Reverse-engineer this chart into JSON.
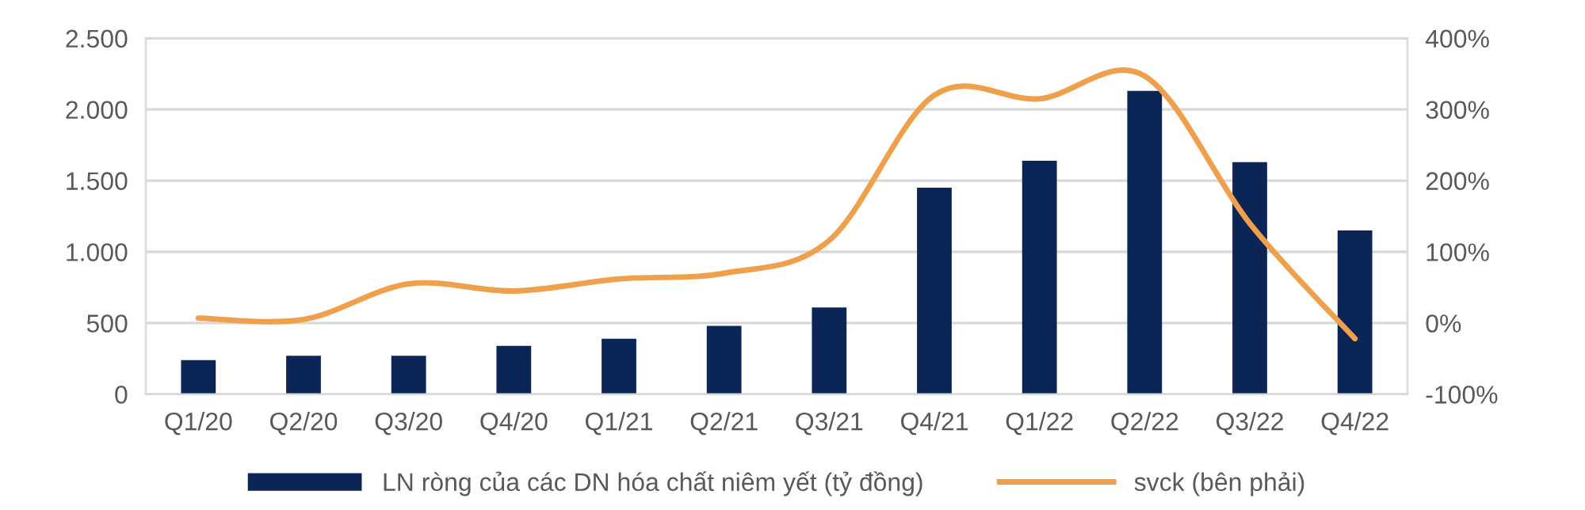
{
  "chart_data": {
    "type": "bar",
    "categories": [
      "Q1/20",
      "Q2/20",
      "Q3/20",
      "Q4/20",
      "Q1/21",
      "Q2/21",
      "Q3/21",
      "Q4/21",
      "Q1/22",
      "Q2/22",
      "Q3/22",
      "Q4/22"
    ],
    "series": [
      {
        "name": "LN ròng của các DN hóa chất niêm yết (tỷ đồng)",
        "color": "#0b2656",
        "values": [
          240,
          270,
          270,
          340,
          390,
          480,
          610,
          1450,
          1640,
          2130,
          1630,
          1150
        ]
      },
      {
        "name": "svck (bên phải)",
        "type": "line",
        "axis": "y2",
        "color": "#f0a04b",
        "values": [
          7,
          5,
          55,
          45,
          62,
          70,
          116,
          320,
          315,
          347,
          140,
          -22
        ]
      }
    ],
    "ylim": [
      0,
      2500
    ],
    "yticks": [
      0,
      {
        "value": 500,
        "label": "500"
      },
      {
        "value": 1000,
        "label": "1.000"
      },
      {
        "value": 1500,
        "label": "1.500"
      },
      {
        "value": 2000,
        "label": "2.000"
      },
      {
        "value": 2500,
        "label": "2.500"
      }
    ],
    "y2lim": [
      -100,
      400
    ],
    "y2ticks": [
      {
        "value": -100,
        "label": "-100%"
      },
      {
        "value": 0,
        "label": "0%"
      },
      {
        "value": 100,
        "label": "100%"
      },
      {
        "value": 200,
        "label": "200%"
      },
      {
        "value": 300,
        "label": "300%"
      },
      {
        "value": 400,
        "label": "400%"
      }
    ],
    "grid": "y",
    "legend": "bottom",
    "marker": "none"
  }
}
